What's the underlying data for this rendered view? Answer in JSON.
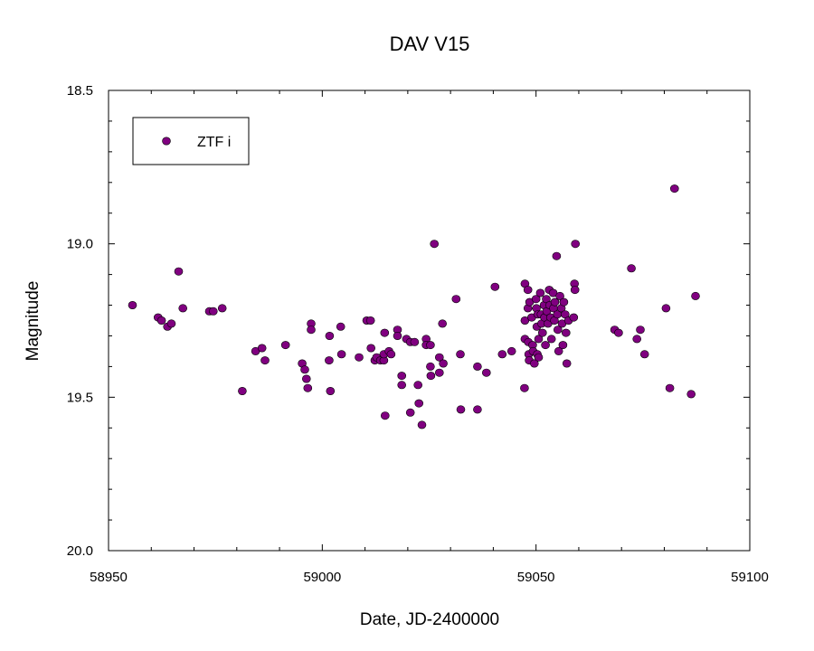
{
  "chart_data": {
    "type": "scatter",
    "title": "DAV V15",
    "xlabel": "Date, JD-2400000",
    "ylabel": "Magnitude",
    "xlim": [
      58950,
      59100
    ],
    "ylim": [
      18.5,
      20.0
    ],
    "y_inverted": true,
    "xticks": [
      "58950",
      "59000",
      "59050",
      "59100"
    ],
    "yticks": [
      "18.5",
      "19.0",
      "19.5",
      "20.0"
    ],
    "grid": false,
    "legend_position": "top-left",
    "series": [
      {
        "name": "ZTF i",
        "marker": "circle",
        "color": "#800080",
        "edge_color": "#000000",
        "points": [
          [
            58955.6,
            19.2
          ],
          [
            58961.6,
            19.24
          ],
          [
            58962.4,
            19.25
          ],
          [
            58963.8,
            19.27
          ],
          [
            58964.7,
            19.26
          ],
          [
            58966.4,
            19.09
          ],
          [
            58967.4,
            19.21
          ],
          [
            58973.6,
            19.22
          ],
          [
            58974.5,
            19.22
          ],
          [
            58976.6,
            19.21
          ],
          [
            58981.3,
            19.48
          ],
          [
            58984.4,
            19.35
          ],
          [
            58985.9,
            19.34
          ],
          [
            58986.6,
            19.38
          ],
          [
            58991.4,
            19.33
          ],
          [
            58995.3,
            19.39
          ],
          [
            58995.9,
            19.41
          ],
          [
            58996.3,
            19.44
          ],
          [
            58996.6,
            19.47
          ],
          [
            58997.4,
            19.26
          ],
          [
            58997.4,
            19.28
          ],
          [
            59001.6,
            19.38
          ],
          [
            59001.7,
            19.3
          ],
          [
            59001.9,
            19.48
          ],
          [
            59004.3,
            19.27
          ],
          [
            59004.5,
            19.36
          ],
          [
            59008.6,
            19.37
          ],
          [
            59010.4,
            19.25
          ],
          [
            59011.3,
            19.25
          ],
          [
            59011.4,
            19.34
          ],
          [
            59012.3,
            19.38
          ],
          [
            59012.7,
            19.37
          ],
          [
            59013.6,
            19.38
          ],
          [
            59014.4,
            19.38
          ],
          [
            59014.4,
            19.36
          ],
          [
            59014.6,
            19.29
          ],
          [
            59015.6,
            19.35
          ],
          [
            59016.1,
            19.36
          ],
          [
            59014.7,
            19.56
          ],
          [
            59017.6,
            19.28
          ],
          [
            59017.6,
            19.3
          ],
          [
            59018.6,
            19.43
          ],
          [
            59018.6,
            19.46
          ],
          [
            59019.7,
            19.31
          ],
          [
            59020.6,
            19.32
          ],
          [
            59020.6,
            19.55
          ],
          [
            59021.6,
            19.32
          ],
          [
            59022.4,
            19.46
          ],
          [
            59022.6,
            19.52
          ],
          [
            59023.3,
            19.59
          ],
          [
            59024.3,
            19.31
          ],
          [
            59024.3,
            19.33
          ],
          [
            59025.3,
            19.33
          ],
          [
            59025.3,
            19.4
          ],
          [
            59025.4,
            19.43
          ],
          [
            59026.2,
            19.0
          ],
          [
            59027.4,
            19.37
          ],
          [
            59027.4,
            19.42
          ],
          [
            59028.1,
            19.26
          ],
          [
            59028.3,
            19.39
          ],
          [
            59031.3,
            19.18
          ],
          [
            59032.3,
            19.36
          ],
          [
            59032.4,
            19.54
          ],
          [
            59036.3,
            19.4
          ],
          [
            59036.3,
            19.54
          ],
          [
            59038.4,
            19.42
          ],
          [
            59040.4,
            19.14
          ],
          [
            59042.1,
            19.36
          ],
          [
            59044.3,
            19.35
          ],
          [
            59047.3,
            19.47
          ],
          [
            59047.4,
            19.13
          ],
          [
            59047.4,
            19.25
          ],
          [
            59047.4,
            19.31
          ],
          [
            59048.1,
            19.15
          ],
          [
            59048.1,
            19.21
          ],
          [
            59048.2,
            19.32
          ],
          [
            59048.3,
            19.36
          ],
          [
            59048.4,
            19.38
          ],
          [
            59048.5,
            19.19
          ],
          [
            59049.0,
            19.24
          ],
          [
            59049.2,
            19.33
          ],
          [
            59049.3,
            19.35
          ],
          [
            59049.6,
            19.39
          ],
          [
            59050.0,
            19.18
          ],
          [
            59050.1,
            19.21
          ],
          [
            59050.2,
            19.27
          ],
          [
            59050.3,
            19.36
          ],
          [
            59050.4,
            19.23
          ],
          [
            59050.6,
            19.31
          ],
          [
            59050.6,
            19.37
          ],
          [
            59051.0,
            19.16
          ],
          [
            59051.2,
            19.23
          ],
          [
            59051.3,
            19.26
          ],
          [
            59051.5,
            19.29
          ],
          [
            59051.9,
            19.2
          ],
          [
            59052.0,
            19.24
          ],
          [
            59052.2,
            19.33
          ],
          [
            59052.4,
            19.18
          ],
          [
            59052.5,
            19.22
          ],
          [
            59052.8,
            19.26
          ],
          [
            59053.1,
            19.15
          ],
          [
            59053.2,
            19.2
          ],
          [
            59053.4,
            19.24
          ],
          [
            59053.6,
            19.31
          ],
          [
            59054.0,
            19.16
          ],
          [
            59054.1,
            19.21
          ],
          [
            59054.3,
            19.25
          ],
          [
            59054.4,
            19.19
          ],
          [
            59054.8,
            19.04
          ],
          [
            59055.0,
            19.23
          ],
          [
            59055.1,
            19.28
          ],
          [
            59055.3,
            19.35
          ],
          [
            59055.6,
            19.17
          ],
          [
            59055.9,
            19.21
          ],
          [
            59056.1,
            19.26
          ],
          [
            59056.3,
            19.33
          ],
          [
            59056.5,
            19.19
          ],
          [
            59056.8,
            19.23
          ],
          [
            59057.0,
            19.29
          ],
          [
            59057.2,
            19.39
          ],
          [
            59057.6,
            19.25
          ],
          [
            59058.8,
            19.24
          ],
          [
            59059.0,
            19.13
          ],
          [
            59059.1,
            19.15
          ],
          [
            59059.2,
            19.0
          ],
          [
            59068.4,
            19.28
          ],
          [
            59069.3,
            19.29
          ],
          [
            59072.3,
            19.08
          ],
          [
            59073.6,
            19.31
          ],
          [
            59074.4,
            19.28
          ],
          [
            59075.4,
            19.36
          ],
          [
            59080.4,
            19.21
          ],
          [
            59081.3,
            19.47
          ],
          [
            59082.4,
            18.82
          ],
          [
            59086.3,
            19.49
          ],
          [
            59087.3,
            19.17
          ]
        ]
      }
    ]
  }
}
